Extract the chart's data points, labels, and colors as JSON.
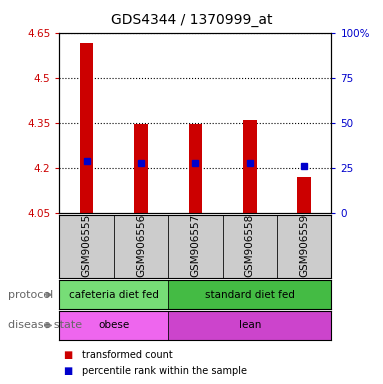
{
  "title": "GDS4344 / 1370999_at",
  "samples": [
    "GSM906555",
    "GSM906556",
    "GSM906557",
    "GSM906558",
    "GSM906559"
  ],
  "bar_bottom": 4.05,
  "bar_tops": [
    4.615,
    4.345,
    4.345,
    4.36,
    4.17
  ],
  "percentile_values": [
    4.222,
    4.215,
    4.215,
    4.215,
    4.205
  ],
  "ylim_left": [
    4.05,
    4.65
  ],
  "ylim_right": [
    0,
    100
  ],
  "yticks_left": [
    4.05,
    4.2,
    4.35,
    4.5,
    4.65
  ],
  "yticks_right": [
    0,
    25,
    50,
    75,
    100
  ],
  "ytick_labels_left": [
    "4.05",
    "4.2",
    "4.35",
    "4.5",
    "4.65"
  ],
  "ytick_labels_right": [
    "0",
    "25",
    "50",
    "75",
    "100%"
  ],
  "bar_color": "#cc0000",
  "percentile_color": "#0000cc",
  "bar_width": 0.25,
  "protocol_groups": [
    {
      "label": "cafeteria diet fed",
      "samples": [
        0,
        1
      ],
      "color": "#77dd77"
    },
    {
      "label": "standard diet fed",
      "samples": [
        2,
        3,
        4
      ],
      "color": "#44bb44"
    }
  ],
  "disease_groups": [
    {
      "label": "obese",
      "samples": [
        0,
        1
      ],
      "color": "#ee66ee"
    },
    {
      "label": "lean",
      "samples": [
        2,
        3,
        4
      ],
      "color": "#cc44cc"
    }
  ],
  "protocol_label": "protocol",
  "disease_label": "disease state",
  "legend_red": "transformed count",
  "legend_blue": "percentile rank within the sample",
  "bg_color": "#ffffff",
  "plot_bg_color": "#ffffff",
  "label_area_color": "#cccccc",
  "spine_color": "#888888"
}
